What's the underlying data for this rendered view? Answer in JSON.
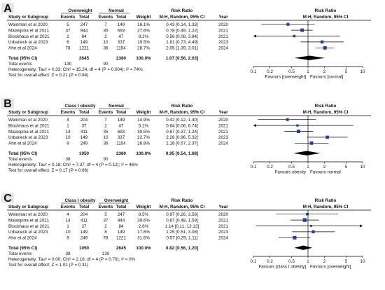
{
  "panels": [
    {
      "letter": "A",
      "group1": "Overweight",
      "group2": "Normal",
      "col_labels": {
        "study": "Study or Subgroup",
        "events1": "Events",
        "total1": "Total",
        "events2": "Events",
        "total2": "Total",
        "weight": "Weight",
        "rr_head": "Risk Ratio",
        "rr_sub": "M-H, Random, 95% CI",
        "year": "Year",
        "plot_head": "Risk Ratio",
        "plot_sub": "M-H, Random, 95% CI"
      },
      "studies": [
        {
          "name": "Weinman et al 2020",
          "e1": "5",
          "t1": "247",
          "e2": "7",
          "t2": "149",
          "weight": "16.1%",
          "ci_text": "0.43 [0.14, 1.33]",
          "year": "2020",
          "rr": 0.43,
          "lo": 0.14,
          "hi": 1.33,
          "w": 16.1
        },
        {
          "name": "Malaspina et al 2021",
          "e1": "37",
          "t1": "944",
          "e2": "35",
          "t2": "693",
          "weight": "27.6%",
          "ci_text": "0.78 [0.49, 1.22]",
          "year": "2021",
          "rr": 0.78,
          "lo": 0.49,
          "hi": 1.22,
          "w": 27.6
        },
        {
          "name": "Blockhaus et al 2021",
          "e1": "2",
          "t1": "84",
          "e2": "2",
          "t2": "47",
          "weight": "8.2%",
          "ci_text": "0.56 [0.08, 3.84]",
          "year": "2021",
          "rr": 0.56,
          "lo": 0.08,
          "hi": 3.84,
          "w": 8.2
        },
        {
          "name": "Urbaneck et al 2023",
          "e1": "8",
          "t1": "149",
          "e2": "10",
          "t2": "337",
          "weight": "19.5%",
          "ci_text": "1.81 [0.73, 4.49]",
          "year": "2023",
          "rr": 1.81,
          "lo": 0.73,
          "hi": 4.49,
          "w": 19.5
        },
        {
          "name": "Ahn et al 2024",
          "e1": "78",
          "t1": "1221",
          "e2": "36",
          "t2": "1154",
          "weight": "28.7%",
          "ci_text": "2.05 [1.39, 3.01]",
          "year": "2024",
          "rr": 2.05,
          "lo": 1.39,
          "hi": 3.01,
          "w": 28.7
        }
      ],
      "total": {
        "label": "Total (95% CI)",
        "t1": "2645",
        "t2": "2380",
        "weight": "100.0%",
        "ci_text": "1.07 [0.56, 2.03]",
        "rr": 1.07,
        "lo": 0.56,
        "hi": 2.03
      },
      "total_events": {
        "label": "Total events",
        "e1": "130",
        "e2": "90"
      },
      "heterogeneity": "Heterogeneity: Tau² = 0.33; Chi² = 15.24, df = 4 (P = 0.004); I² = 74%",
      "overall_test": "Test for overall effect: Z = 0.21 (P = 0.84)",
      "axis": {
        "ticks": [
          {
            "v": 0.1,
            "label": "0.1"
          },
          {
            "v": 0.2,
            "label": "0.2"
          },
          {
            "v": 0.5,
            "label": "0.5"
          },
          {
            "v": 1,
            "label": "1"
          },
          {
            "v": 2,
            "label": "2"
          },
          {
            "v": 5,
            "label": "5"
          },
          {
            "v": 10,
            "label": "10"
          }
        ],
        "favours_left": "Favours [overweight]",
        "favours_right": "Favours [normal]"
      }
    },
    {
      "letter": "B",
      "group1": "Class I obesity",
      "group2": "Normal",
      "col_labels": {
        "study": "Study or Subgroup",
        "events1": "Events",
        "total1": "Total",
        "events2": "Events",
        "total2": "Total",
        "weight": "Weight",
        "rr_head": "Risk Ratio",
        "rr_sub": "M-H, Random, 95% CI",
        "year": "Year",
        "plot_head": "Risk Ratio",
        "plot_sub": "M-H, Random, 95% CI"
      },
      "studies": [
        {
          "name": "Weinman et al 2020",
          "e1": "4",
          "t1": "204",
          "e2": "7",
          "t2": "149",
          "weight": "14.9%",
          "ci_text": "0.42 [0.12, 1.40]",
          "year": "2020",
          "rr": 0.42,
          "lo": 0.12,
          "hi": 1.4,
          "w": 14.9
        },
        {
          "name": "Blockhaus et al 2021",
          "e1": "1",
          "t1": "37",
          "e2": "2",
          "t2": "47",
          "weight": "5.1%",
          "ci_text": "0.64 [0.06, 6.74]",
          "year": "2021",
          "rr": 0.64,
          "lo": 0.06,
          "hi": 6.74,
          "w": 5.1
        },
        {
          "name": "Malaspina et al 2021",
          "e1": "14",
          "t1": "411",
          "e2": "35",
          "t2": "693",
          "weight": "30.5%",
          "ci_text": "0.67 [0.37, 1.24]",
          "year": "2021",
          "rr": 0.67,
          "lo": 0.37,
          "hi": 1.24,
          "w": 30.5
        },
        {
          "name": "Urbaneck et al 2023",
          "e1": "10",
          "t1": "149",
          "e2": "10",
          "t2": "337",
          "weight": "22.7%",
          "ci_text": "2.26 [0.96, 5.32]",
          "year": "2023",
          "rr": 2.26,
          "lo": 0.96,
          "hi": 5.32,
          "w": 22.7
        },
        {
          "name": "Ahn et al 2024",
          "e1": "9",
          "t1": "249",
          "e2": "36",
          "t2": "1154",
          "weight": "26.8%",
          "ci_text": "1.16 [0.57, 2.37]",
          "year": "2024",
          "rr": 1.16,
          "lo": 0.57,
          "hi": 2.37,
          "w": 26.8
        }
      ],
      "total": {
        "label": "Total (95% CI)",
        "t1": "1050",
        "t2": "2380",
        "weight": "100.0%",
        "ci_text": "0.95 [0.54, 1.68]",
        "rr": 0.95,
        "lo": 0.54,
        "hi": 1.68
      },
      "total_events": {
        "label": "Total events",
        "e1": "38",
        "e2": "90"
      },
      "heterogeneity": "Heterogeneity: Tau² = 0.18; Chi² = 7.37, df = 4 (P = 0.12); I² = 46%",
      "overall_test": "Test for overall effect: Z = 0.17 (P = 0.86)",
      "axis": {
        "ticks": [
          {
            "v": 0.1,
            "label": "0.1"
          },
          {
            "v": 0.2,
            "label": "0.2"
          },
          {
            "v": 0.5,
            "label": "0.5"
          },
          {
            "v": 1,
            "label": "1"
          },
          {
            "v": 2,
            "label": "2"
          },
          {
            "v": 5,
            "label": "5"
          },
          {
            "v": 10,
            "label": "10"
          }
        ],
        "favours_left": "Favours obesity",
        "favours_right": "Favours normal"
      }
    },
    {
      "letter": "C",
      "group1": "Class I obesity",
      "group2": "Overweight",
      "col_labels": {
        "study": "Study or Subgroup",
        "events1": "Events",
        "total1": "Total",
        "events2": "Events",
        "total2": "Total",
        "weight": "Weight",
        "rr_head": "Risk Ratio",
        "rr_sub": "M-H, Random, 95% CI",
        "year": "Year",
        "plot_head": "Risk Ratio",
        "plot_sub": "M-H, Random, 95% CI"
      },
      "studies": [
        {
          "name": "Weinman et al 2020",
          "e1": "4",
          "t1": "204",
          "e2": "5",
          "t2": "247",
          "weight": "8.5%",
          "ci_text": "0.97 [0.26, 3.56]",
          "year": "2020",
          "rr": 0.97,
          "lo": 0.26,
          "hi": 3.56,
          "w": 8.5
        },
        {
          "name": "Malaspina et al 2021",
          "e1": "14",
          "t1": "411",
          "e2": "37",
          "t2": "944",
          "weight": "39.6%",
          "ci_text": "0.87 [0.48, 1.59]",
          "year": "2021",
          "rr": 0.87,
          "lo": 0.48,
          "hi": 1.59,
          "w": 39.6
        },
        {
          "name": "Blockhaus et al 2021",
          "e1": "1",
          "t1": "37",
          "e2": "2",
          "t2": "84",
          "weight": "2.6%",
          "ci_text": "1.14 [0.11, 12.13]",
          "year": "2021",
          "rr": 1.14,
          "lo": 0.11,
          "hi": 12.13,
          "w": 2.6
        },
        {
          "name": "Urbaneck et al 2023",
          "e1": "10",
          "t1": "149",
          "e2": "8",
          "t2": "149",
          "weight": "17.8%",
          "ci_text": "1.25 [0.51, 3.08]",
          "year": "2023",
          "rr": 1.25,
          "lo": 0.51,
          "hi": 3.08,
          "w": 17.8
        },
        {
          "name": "Ahn et al 2024",
          "e1": "9",
          "t1": "249",
          "e2": "78",
          "t2": "1221",
          "weight": "31.6%",
          "ci_text": "0.57 [0.29, 1.11]",
          "year": "2024",
          "rr": 0.57,
          "lo": 0.29,
          "hi": 1.11,
          "w": 31.6
        }
      ],
      "total": {
        "label": "Total (95% CI)",
        "t1": "1050",
        "t2": "2645",
        "weight": "100.0%",
        "ci_text": "0.82 [0.56, 1.20]",
        "rr": 0.82,
        "lo": 0.56,
        "hi": 1.2
      },
      "total_events": {
        "label": "Total events",
        "e1": "38",
        "e2": "130"
      },
      "heterogeneity": "Heterogeneity: Tau² = 0.00; Chi² = 2.18, df = 4 (P = 0.70); I² = 0%",
      "overall_test": "Test for overall effect: Z = 1.01 (P = 0.31)",
      "axis": {
        "ticks": [
          {
            "v": 0.1,
            "label": "0.1"
          },
          {
            "v": 0.2,
            "label": "0.2"
          },
          {
            "v": 0.5,
            "label": "0.5"
          },
          {
            "v": 1,
            "label": "1"
          },
          {
            "v": 2,
            "label": "2"
          },
          {
            "v": 5,
            "label": "5"
          },
          {
            "v": 10,
            "label": "10"
          }
        ],
        "favours_left": "Favours [class I obesity]",
        "favours_right": "Favours [overweight]"
      }
    }
  ],
  "colors": {
    "marker": "#1f3fa8",
    "diamond": "#000000",
    "line": "#000000",
    "panel_label_bg": "#e6e6e6"
  },
  "chart_data": [
    {
      "type": "scatter",
      "title": "",
      "xlabel": "Risk Ratio (M-H, Random, 95% CI)",
      "xscale": "log",
      "xlim": [
        0.1,
        10
      ],
      "categories": [
        "Weinman et al 2020",
        "Malaspina et al 2021",
        "Blockhaus et al 2021",
        "Urbaneck et al 2023",
        "Ahn et al 2024",
        "Total (95% CI)"
      ],
      "series": [
        {
          "name": "Risk Ratio",
          "values": [
            0.43,
            0.78,
            0.56,
            1.81,
            2.05,
            1.07
          ]
        },
        {
          "name": "Lower 95% CI",
          "values": [
            0.14,
            0.49,
            0.08,
            0.73,
            1.39,
            0.56
          ]
        },
        {
          "name": "Upper 95% CI",
          "values": [
            1.33,
            1.22,
            3.84,
            4.49,
            3.01,
            2.03
          ]
        },
        {
          "name": "Weight",
          "values": [
            16.1,
            27.6,
            8.2,
            19.5,
            28.7,
            100.0
          ]
        }
      ]
    },
    {
      "type": "scatter",
      "title": "",
      "xlabel": "Risk Ratio (M-H, Random, 95% CI)",
      "xscale": "log",
      "xlim": [
        0.1,
        10
      ],
      "categories": [
        "Weinman et al 2020",
        "Blockhaus et al 2021",
        "Malaspina et al 2021",
        "Urbaneck et al 2023",
        "Ahn et al 2024",
        "Total (95% CI)"
      ],
      "series": [
        {
          "name": "Risk Ratio",
          "values": [
            0.42,
            0.64,
            0.67,
            2.26,
            1.16,
            0.95
          ]
        },
        {
          "name": "Lower 95% CI",
          "values": [
            0.12,
            0.06,
            0.37,
            0.96,
            0.57,
            0.54
          ]
        },
        {
          "name": "Upper 95% CI",
          "values": [
            1.4,
            6.74,
            1.24,
            5.32,
            2.37,
            1.68
          ]
        },
        {
          "name": "Weight",
          "values": [
            14.9,
            5.1,
            30.5,
            22.7,
            26.8,
            100.0
          ]
        }
      ]
    },
    {
      "type": "scatter",
      "title": "",
      "xlabel": "Risk Ratio (M-H, Random, 95% CI)",
      "xscale": "log",
      "xlim": [
        0.1,
        10
      ],
      "categories": [
        "Weinman et al 2020",
        "Malaspina et al 2021",
        "Blockhaus et al 2021",
        "Urbaneck et al 2023",
        "Ahn et al 2024",
        "Total (95% CI)"
      ],
      "series": [
        {
          "name": "Risk Ratio",
          "values": [
            0.97,
            0.87,
            1.14,
            1.25,
            0.57,
            0.82
          ]
        },
        {
          "name": "Lower 95% CI",
          "values": [
            0.26,
            0.48,
            0.11,
            0.51,
            0.29,
            0.56
          ]
        },
        {
          "name": "Upper 95% CI",
          "values": [
            3.56,
            1.59,
            12.13,
            3.08,
            1.11,
            1.2
          ]
        },
        {
          "name": "Weight",
          "values": [
            8.5,
            39.6,
            2.6,
            17.8,
            31.6,
            100.0
          ]
        }
      ]
    }
  ]
}
